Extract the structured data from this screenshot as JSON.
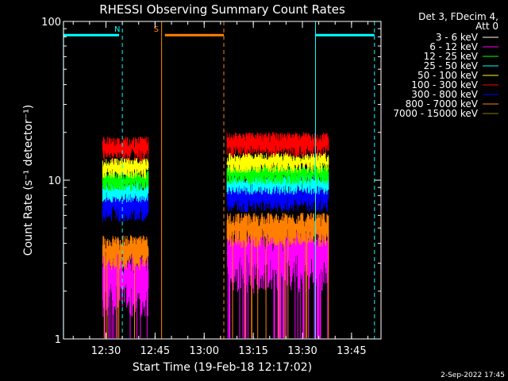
{
  "chart_data": {
    "type": "line",
    "title": "RHESSI Observing Summary Count Rates",
    "xlabel": "Start Time (19-Feb-18 12:17:02)",
    "ylabel": "Count Rate (s⁻¹ detector⁻¹)",
    "yscale": "log",
    "ylim": [
      1,
      100
    ],
    "yticks": [
      "100",
      "10",
      "1"
    ],
    "xlim_minutes": [
      "12:17",
      "13:54"
    ],
    "xticks": [
      "12:30",
      "12:45",
      "13:00",
      "13:15",
      "13:30",
      "13:45"
    ],
    "legend_header": [
      "Det 3, FDecim 4,",
      "Att 0"
    ],
    "legend_position": "top-right",
    "series": [
      {
        "name": "3 - 6 keV",
        "color": "#ffffff"
      },
      {
        "name": "6 - 12 keV",
        "color": "#ff00ff"
      },
      {
        "name": "12 - 25 keV",
        "color": "#00ff00"
      },
      {
        "name": "25 - 50 keV",
        "color": "#00ffff"
      },
      {
        "name": "50 - 100 keV",
        "color": "#ffff00"
      },
      {
        "name": "100 - 300 keV",
        "color": "#ff0000"
      },
      {
        "name": "300 - 800 keV",
        "color": "#0000ff"
      },
      {
        "name": "800 - 7000 keV",
        "color": "#ff8000"
      },
      {
        "name": "7000 - 15000 keV",
        "color": "#808000"
      }
    ],
    "segments": [
      {
        "start": "12:29",
        "end": "12:43"
      },
      {
        "start": "13:07",
        "end": "13:38"
      }
    ],
    "band_levels": [
      {
        "name": "100 - 300 keV",
        "seg1": 16,
        "seg2": 17
      },
      {
        "name": "50 - 100 keV",
        "seg1": 12,
        "seg2": 13
      },
      {
        "name": "12 - 25 keV",
        "seg1": 10,
        "seg2": 11
      },
      {
        "name": "25 - 50 keV",
        "seg1": 8.5,
        "seg2": 9.5
      },
      {
        "name": "300 - 800 keV",
        "seg1": 7,
        "seg2": 8
      },
      {
        "name": "800 - 7000 keV",
        "seg1": 3.6,
        "seg2": 5
      },
      {
        "name": "6 - 12 keV",
        "seg1": 2.5,
        "seg2": 3.5
      }
    ],
    "annotations": [
      {
        "label": "N",
        "color": "#00ffff",
        "bar_start": "12:17",
        "bar_end": "12:34",
        "line_start": "12:17",
        "line_dash": "12:35"
      },
      {
        "label": "S",
        "color": "#ff8000",
        "bar_start": "12:48",
        "bar_end": "13:06",
        "line_start": "12:47",
        "line_dash": "13:06"
      },
      {
        "label": "",
        "color": "#00ffff",
        "bar_start": "13:34",
        "bar_end": "13:52",
        "line_start": "13:34",
        "line_dash": "13:52"
      }
    ],
    "bar_level": 82,
    "grid": false
  },
  "timestamp": "2-Sep-2022 17:45"
}
